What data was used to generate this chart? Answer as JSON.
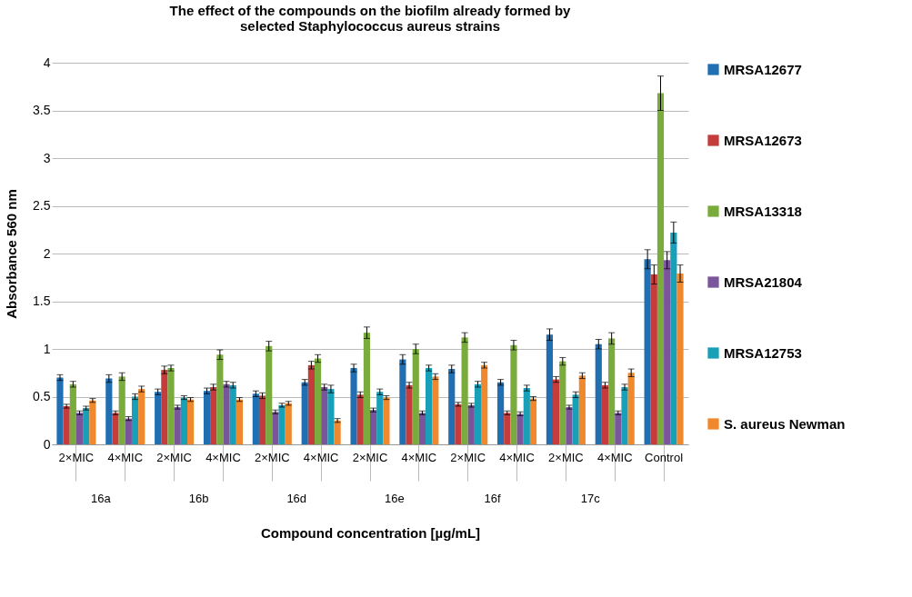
{
  "chart_data": {
    "type": "bar",
    "title": "The effect of the compounds on the biofilm already formed by\nselected Staphylococcus aureus strains",
    "xlabel": "Compound concentration [µg/mL]",
    "ylabel": "Absorbance 560 nm",
    "categories": [
      "2×MIC",
      "4×MIC",
      "2×MIC",
      "4×MIC",
      "2×MIC",
      "4×MIC",
      "2×MIC",
      "4×MIC",
      "2×MIC",
      "4×MIC",
      "2×MIC",
      "4×MIC",
      "Control"
    ],
    "annotations": [
      "16a",
      "16b",
      "16d",
      "16e",
      "16f",
      "17c"
    ],
    "series": [
      {
        "name": "MRSA12677",
        "color": "#1f6fb2",
        "values": [
          0.7,
          0.69,
          0.55,
          0.56,
          0.53,
          0.65,
          0.8,
          0.89,
          0.79,
          0.65,
          1.15,
          1.05,
          1.94
        ],
        "errors": [
          0.03,
          0.04,
          0.03,
          0.03,
          0.03,
          0.03,
          0.04,
          0.05,
          0.04,
          0.03,
          0.06,
          0.05,
          0.1
        ]
      },
      {
        "name": "MRSA12673",
        "color": "#c43c3c",
        "values": [
          0.4,
          0.33,
          0.78,
          0.6,
          0.51,
          0.83,
          0.52,
          0.62,
          0.42,
          0.33,
          0.68,
          0.62,
          1.78
        ],
        "errors": [
          0.02,
          0.02,
          0.04,
          0.03,
          0.03,
          0.04,
          0.03,
          0.03,
          0.02,
          0.02,
          0.03,
          0.03,
          0.1
        ]
      },
      {
        "name": "MRSA13318",
        "color": "#7aab3d",
        "values": [
          0.63,
          0.71,
          0.8,
          0.94,
          1.03,
          0.9,
          1.17,
          1.0,
          1.12,
          1.04,
          0.87,
          1.11,
          3.68
        ],
        "errors": [
          0.03,
          0.04,
          0.03,
          0.05,
          0.05,
          0.04,
          0.06,
          0.05,
          0.05,
          0.05,
          0.04,
          0.06,
          0.18
        ]
      },
      {
        "name": "MRSA21804",
        "color": "#7b559c",
        "values": [
          0.33,
          0.27,
          0.39,
          0.63,
          0.34,
          0.6,
          0.36,
          0.33,
          0.41,
          0.32,
          0.39,
          0.33,
          1.93
        ],
        "errors": [
          0.02,
          0.02,
          0.02,
          0.03,
          0.02,
          0.03,
          0.02,
          0.02,
          0.02,
          0.02,
          0.02,
          0.02,
          0.09
        ]
      },
      {
        "name": "MRSA12753",
        "color": "#17a0b8",
        "values": [
          0.38,
          0.5,
          0.49,
          0.62,
          0.41,
          0.58,
          0.55,
          0.8,
          0.63,
          0.59,
          0.52,
          0.6,
          2.22
        ],
        "errors": [
          0.02,
          0.03,
          0.02,
          0.03,
          0.02,
          0.04,
          0.03,
          0.03,
          0.03,
          0.03,
          0.03,
          0.03,
          0.11
        ]
      },
      {
        "name": "S. aureus Newman",
        "color": "#f0882d",
        "values": [
          0.46,
          0.58,
          0.47,
          0.47,
          0.43,
          0.25,
          0.49,
          0.71,
          0.83,
          0.48,
          0.72,
          0.75,
          1.79
        ],
        "errors": [
          0.02,
          0.03,
          0.02,
          0.02,
          0.02,
          0.02,
          0.02,
          0.03,
          0.03,
          0.02,
          0.03,
          0.04,
          0.09
        ]
      }
    ],
    "ylim": [
      0,
      4
    ],
    "yticks": [
      0,
      0.5,
      1,
      1.5,
      2,
      2.5,
      3,
      3.5,
      4
    ],
    "grid": "y",
    "legend": "right"
  }
}
